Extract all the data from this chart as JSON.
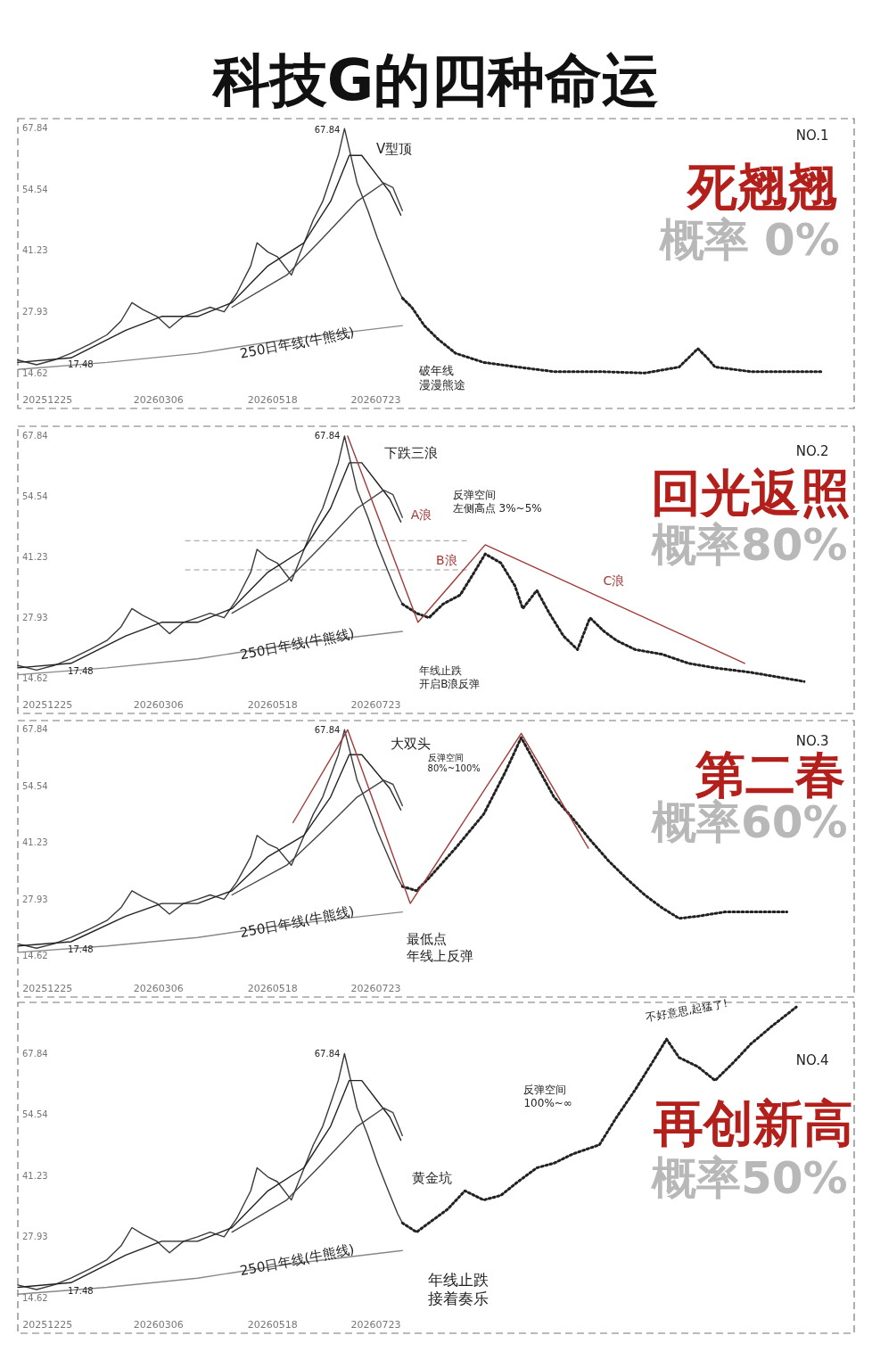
{
  "chart_data": [
    {
      "type": "line",
      "title": "科技G的四种命运",
      "xlim": [
        "2025-12-06",
        "2027-05-25"
      ],
      "ylim": [
        7,
        70
      ],
      "xticks": [
        {
          "value": "2025-12-25",
          "label": "20251225"
        },
        {
          "value": "2026-03-06",
          "label": "20260306"
        },
        {
          "value": "2026-05-18",
          "label": "20260518"
        },
        {
          "value": "2026-07-23",
          "label": "20260723"
        }
      ],
      "yticks": [
        14.62,
        27.93,
        41.23,
        54.54,
        67.84
      ],
      "grid": false,
      "series": [
        {
          "color": "#3a3a3a",
          "x": [
            "2025-12-06",
            "2025-12-18",
            "2025-12-29",
            "2026-01-09",
            "2026-01-21",
            "2026-02-01",
            "2026-02-10",
            "2026-02-17",
            "2026-02-24",
            "2026-03-05",
            "2026-03-13",
            "2026-03-22",
            "2026-03-31",
            "2026-04-08",
            "2026-04-17",
            "2026-04-25",
            "2026-05-04",
            "2026-05-08",
            "2026-05-15",
            "2026-05-21",
            "2026-05-30",
            "2026-06-06",
            "2026-06-13",
            "2026-06-19",
            "2026-06-24",
            "2026-06-29",
            "2026-07-03",
            "2026-07-07",
            "2026-07-11",
            "2026-07-18",
            "2026-07-24",
            "2026-07-31",
            "2026-08-06",
            "2026-08-09"
          ],
          "values": [
            17.5,
            16.5,
            17.5,
            19,
            21,
            23,
            26,
            30,
            28.5,
            27,
            24.5,
            27,
            28,
            29,
            28,
            32,
            38,
            43,
            41,
            40,
            36,
            42,
            48,
            52,
            57,
            62,
            67.84,
            62,
            56,
            50,
            44,
            38,
            33,
            31
          ]
        },
        {
          "color": "#222222",
          "x": [
            "2025-12-06",
            "2026-01-09",
            "2026-02-13",
            "2026-03-08",
            "2026-03-31",
            "2026-04-22",
            "2026-05-15",
            "2026-06-07",
            "2026-06-24",
            "2026-07-06",
            "2026-07-14",
            "2026-07-23",
            "2026-08-01",
            "2026-08-08"
          ],
          "values": [
            17,
            18,
            24,
            27,
            27,
            30,
            38,
            43,
            52,
            62,
            62,
            58,
            54,
            49
          ]
        },
        {
          "color": "#444444",
          "x": [
            "2026-04-22",
            "2026-05-27",
            "2026-06-19",
            "2026-07-11",
            "2026-07-28",
            "2026-08-03",
            "2026-08-09"
          ],
          "values": [
            29,
            36,
            44,
            52,
            56,
            55,
            50
          ]
        },
        {
          "color": "#888888",
          "x": [
            "2025-12-06",
            "2026-02-01",
            "2026-03-31",
            "2026-05-27",
            "2026-08-09"
          ],
          "values": [
            15.5,
            17,
            19,
            22,
            25
          ]
        },
        {
          "color": "#222222",
          "line_style": "dotted",
          "x": [
            "2026-08-09",
            "2026-08-15",
            "2026-08-23",
            "2026-09-01",
            "2026-09-12",
            "2026-09-30",
            "2026-10-22",
            "2026-11-14",
            "2026-12-13",
            "2027-01-11",
            "2027-02-02",
            "2027-02-08",
            "2027-02-14",
            "2027-02-20",
            "2027-02-25",
            "2027-03-20",
            "2027-04-18",
            "2027-05-05"
          ],
          "values": [
            31,
            29,
            25,
            22,
            19,
            17,
            16,
            15,
            15,
            14.7,
            16,
            18,
            20,
            18,
            16,
            15,
            15,
            15
          ]
        }
      ],
      "annotations": [
        "NO.1",
        "死翘翘",
        "概率 0%",
        "67.84",
        "V型顶",
        "17.48",
        "250日年线(牛熊线)",
        "破年线漫漫熊途"
      ]
    },
    {
      "type": "line",
      "xlim": [
        "2025-12-06",
        "2027-05-25"
      ],
      "ylim": [
        7,
        70
      ],
      "xticks": [
        {
          "value": "2025-12-25",
          "label": "20251225"
        },
        {
          "value": "2026-03-06",
          "label": "20260306"
        },
        {
          "value": "2026-05-18",
          "label": "20260518"
        },
        {
          "value": "2026-07-23",
          "label": "20260723"
        }
      ],
      "yticks": [
        14.62,
        27.93,
        41.23,
        54.54,
        67.84
      ],
      "grid": false,
      "ref_lines": [
        {
          "axis": "y",
          "value": 44.9,
          "color": "#999999",
          "line_style": "dashed"
        },
        {
          "axis": "y",
          "value": 38.5,
          "color": "#999999",
          "line_style": "dashed"
        }
      ],
      "series": [
        {
          "color": "#3a3a3a",
          "x": [
            "2025-12-06",
            "2025-12-18",
            "2025-12-29",
            "2026-01-09",
            "2026-01-21",
            "2026-02-01",
            "2026-02-10",
            "2026-02-17",
            "2026-02-24",
            "2026-03-05",
            "2026-03-13",
            "2026-03-22",
            "2026-03-31",
            "2026-04-08",
            "2026-04-17",
            "2026-04-25",
            "2026-05-04",
            "2026-05-08",
            "2026-05-15",
            "2026-05-21",
            "2026-05-30",
            "2026-06-06",
            "2026-06-13",
            "2026-06-19",
            "2026-06-24",
            "2026-06-29",
            "2026-07-03",
            "2026-07-07",
            "2026-07-11",
            "2026-07-18",
            "2026-07-24",
            "2026-07-31",
            "2026-08-06",
            "2026-08-09"
          ],
          "values": [
            17.5,
            16.5,
            17.5,
            19,
            21,
            23,
            26,
            30,
            28.5,
            27,
            24.5,
            27,
            28,
            29,
            28,
            32,
            38,
            43,
            41,
            40,
            36,
            42,
            48,
            52,
            57,
            62,
            67.84,
            62,
            56,
            50,
            44,
            38,
            33,
            31
          ]
        },
        {
          "color": "#222222",
          "x": [
            "2025-12-06",
            "2026-01-09",
            "2026-02-13",
            "2026-03-08",
            "2026-03-31",
            "2026-04-22",
            "2026-05-15",
            "2026-06-07",
            "2026-06-24",
            "2026-07-06",
            "2026-07-14",
            "2026-07-23",
            "2026-08-01",
            "2026-08-08"
          ],
          "values": [
            17,
            18,
            24,
            27,
            27,
            30,
            38,
            43,
            52,
            62,
            62,
            58,
            54,
            49
          ]
        },
        {
          "color": "#444444",
          "x": [
            "2026-04-22",
            "2026-05-27",
            "2026-06-19",
            "2026-07-11",
            "2026-07-28",
            "2026-08-03",
            "2026-08-09"
          ],
          "values": [
            29,
            36,
            44,
            52,
            56,
            55,
            50
          ]
        },
        {
          "color": "#888888",
          "x": [
            "2025-12-06",
            "2026-02-01",
            "2026-03-31",
            "2026-05-27",
            "2026-08-09"
          ],
          "values": [
            15.5,
            17,
            19,
            22,
            25
          ]
        },
        {
          "color": "#222222",
          "line_style": "dotted",
          "x": [
            "2026-08-09",
            "2026-08-18",
            "2026-08-26",
            "2026-09-04",
            "2026-09-15",
            "2026-09-24",
            "2026-10-01",
            "2026-10-11",
            "2026-10-20",
            "2026-10-25",
            "2026-11-03",
            "2026-11-11",
            "2026-11-20",
            "2026-11-29",
            "2026-12-07",
            "2026-12-16",
            "2026-12-24",
            "2027-01-05",
            "2027-01-22",
            "2027-02-08",
            "2027-02-25",
            "2027-03-20",
            "2027-04-23"
          ],
          "values": [
            31,
            29,
            28,
            31,
            33,
            38,
            42,
            40,
            35,
            30,
            34,
            29,
            24,
            21,
            28,
            25,
            23,
            21,
            20,
            18,
            17,
            16,
            14
          ]
        },
        {
          "color": "#a33a3a",
          "x": [
            "2026-07-05",
            "2026-08-19",
            "2026-10-01",
            "2027-03-16"
          ],
          "values": [
            67.84,
            27,
            44,
            18
          ]
        }
      ],
      "annotations": [
        "NO.2",
        "回光返照",
        "概率80%",
        "67.84",
        "下跌三浪",
        "反弹空间左侧高点 3%~5%",
        "A浪",
        "B浪",
        "C浪",
        "17.48",
        "250日年线(牛熊线)",
        "年线止跌开启B浪反弹"
      ]
    },
    {
      "type": "line",
      "xlim": [
        "2025-12-06",
        "2027-05-25"
      ],
      "ylim": [
        5,
        70
      ],
      "xticks": [
        {
          "value": "2025-12-25",
          "label": "20251225"
        },
        {
          "value": "2026-03-06",
          "label": "20260306"
        },
        {
          "value": "2026-05-18",
          "label": "20260518"
        },
        {
          "value": "2026-07-23",
          "label": "20260723"
        }
      ],
      "yticks": [
        14.62,
        27.93,
        41.23,
        54.54,
        67.84
      ],
      "grid": false,
      "series": [
        {
          "color": "#3a3a3a",
          "x": [
            "2025-12-06",
            "2025-12-18",
            "2025-12-29",
            "2026-01-09",
            "2026-01-21",
            "2026-02-01",
            "2026-02-10",
            "2026-02-17",
            "2026-02-24",
            "2026-03-05",
            "2026-03-13",
            "2026-03-22",
            "2026-03-31",
            "2026-04-08",
            "2026-04-17",
            "2026-04-25",
            "2026-05-04",
            "2026-05-08",
            "2026-05-15",
            "2026-05-21",
            "2026-05-30",
            "2026-06-06",
            "2026-06-13",
            "2026-06-19",
            "2026-06-24",
            "2026-06-29",
            "2026-07-03",
            "2026-07-07",
            "2026-07-11",
            "2026-07-18",
            "2026-07-24",
            "2026-07-31",
            "2026-08-06",
            "2026-08-09"
          ],
          "values": [
            17.5,
            16.5,
            17.5,
            19,
            21,
            23,
            26,
            30,
            28.5,
            27,
            24.5,
            27,
            28,
            29,
            28,
            32,
            38,
            43,
            41,
            40,
            36,
            42,
            48,
            52,
            57,
            62,
            67.84,
            62,
            56,
            50,
            44,
            38,
            33,
            31
          ]
        },
        {
          "color": "#222222",
          "x": [
            "2025-12-06",
            "2026-01-09",
            "2026-02-13",
            "2026-03-08",
            "2026-03-31",
            "2026-04-22",
            "2026-05-15",
            "2026-06-07",
            "2026-06-24",
            "2026-07-06",
            "2026-07-14",
            "2026-07-23",
            "2026-08-01",
            "2026-08-08"
          ],
          "values": [
            17,
            18,
            24,
            27,
            27,
            30,
            38,
            43,
            52,
            62,
            62,
            58,
            54,
            49
          ]
        },
        {
          "color": "#444444",
          "x": [
            "2026-04-22",
            "2026-05-27",
            "2026-06-19",
            "2026-07-11",
            "2026-07-28",
            "2026-08-03",
            "2026-08-09"
          ],
          "values": [
            29,
            36,
            44,
            52,
            56,
            55,
            50
          ]
        },
        {
          "color": "#888888",
          "x": [
            "2025-12-06",
            "2026-02-01",
            "2026-03-31",
            "2026-05-27",
            "2026-08-09"
          ],
          "values": [
            15.5,
            17,
            19,
            22,
            25
          ]
        },
        {
          "color": "#222222",
          "line_style": "dotted",
          "x": [
            "2026-08-09",
            "2026-08-18",
            "2026-08-26",
            "2026-09-12",
            "2026-09-30",
            "2026-10-14",
            "2026-10-24",
            "2026-11-02",
            "2026-11-14",
            "2026-11-26",
            "2026-12-07",
            "2026-12-19",
            "2026-12-30",
            "2027-01-11",
            "2027-01-22",
            "2027-02-02",
            "2027-02-14",
            "2027-03-03",
            "2027-03-20",
            "2027-04-12"
          ],
          "values": [
            31,
            30,
            33,
            40,
            48,
            58,
            66,
            60,
            52,
            47,
            42,
            37,
            33,
            29,
            26,
            23.5,
            24,
            25,
            25,
            25
          ]
        },
        {
          "color": "#a33a3a",
          "x": [
            "2026-05-31",
            "2026-07-05",
            "2026-08-14",
            "2026-10-24",
            "2026-12-06"
          ],
          "values": [
            46,
            67.84,
            27,
            67,
            40
          ]
        }
      ],
      "annotations": [
        "NO.3",
        "第二春",
        "概率60%",
        "67.84",
        "大双头",
        "反弹空间80%~100%",
        "17.48",
        "250日年线(牛熊线)",
        "最低点年线上反弹"
      ]
    },
    {
      "type": "line",
      "xlim": [
        "2025-12-06",
        "2027-05-25"
      ],
      "ylim": [
        7,
        79
      ],
      "xticks": [
        {
          "value": "2025-12-25",
          "label": "20251225"
        },
        {
          "value": "2026-03-06",
          "label": "20260306"
        },
        {
          "value": "2026-05-18",
          "label": "20260518"
        },
        {
          "value": "2026-07-23",
          "label": "20260723"
        }
      ],
      "yticks": [
        14.62,
        27.93,
        41.23,
        54.54,
        67.84
      ],
      "grid": false,
      "series": [
        {
          "color": "#3a3a3a",
          "x": [
            "2025-12-06",
            "2025-12-18",
            "2025-12-29",
            "2026-01-09",
            "2026-01-21",
            "2026-02-01",
            "2026-02-10",
            "2026-02-17",
            "2026-02-24",
            "2026-03-05",
            "2026-03-13",
            "2026-03-22",
            "2026-03-31",
            "2026-04-08",
            "2026-04-17",
            "2026-04-25",
            "2026-05-04",
            "2026-05-08",
            "2026-05-15",
            "2026-05-21",
            "2026-05-30",
            "2026-06-06",
            "2026-06-13",
            "2026-06-19",
            "2026-06-24",
            "2026-06-29",
            "2026-07-03",
            "2026-07-07",
            "2026-07-11",
            "2026-07-18",
            "2026-07-24",
            "2026-07-31",
            "2026-08-06",
            "2026-08-09"
          ],
          "values": [
            17.5,
            16.5,
            17.5,
            19,
            21,
            23,
            26,
            30,
            28.5,
            27,
            24.5,
            27,
            28,
            29,
            28,
            32,
            38,
            43,
            41,
            40,
            36,
            42,
            48,
            52,
            57,
            62,
            67.84,
            62,
            56,
            50,
            44,
            38,
            33,
            31
          ]
        },
        {
          "color": "#222222",
          "x": [
            "2025-12-06",
            "2026-01-09",
            "2026-02-13",
            "2026-03-08",
            "2026-03-31",
            "2026-04-22",
            "2026-05-15",
            "2026-06-07",
            "2026-06-24",
            "2026-07-06",
            "2026-07-14",
            "2026-07-23",
            "2026-08-01",
            "2026-08-08"
          ],
          "values": [
            17,
            18,
            24,
            27,
            27,
            30,
            38,
            43,
            52,
            62,
            62,
            58,
            54,
            49
          ]
        },
        {
          "color": "#444444",
          "x": [
            "2026-04-22",
            "2026-05-27",
            "2026-06-19",
            "2026-07-11",
            "2026-07-28",
            "2026-08-03",
            "2026-08-09"
          ],
          "values": [
            29,
            36,
            44,
            52,
            56,
            55,
            50
          ]
        },
        {
          "color": "#888888",
          "x": [
            "2025-12-06",
            "2026-02-01",
            "2026-03-31",
            "2026-05-27",
            "2026-08-09"
          ],
          "values": [
            15.5,
            17,
            19,
            22,
            25
          ]
        },
        {
          "color": "#222222",
          "line_style": "dotted",
          "x": [
            "2026-08-09",
            "2026-08-18",
            "2026-08-26",
            "2026-09-07",
            "2026-09-18",
            "2026-09-30",
            "2026-10-11",
            "2026-10-22",
            "2026-11-03",
            "2026-11-14",
            "2026-11-26",
            "2026-12-13",
            "2026-12-24",
            "2027-01-05",
            "2027-01-16",
            "2027-01-25",
            "2027-02-02",
            "2027-02-14",
            "2027-02-25",
            "2027-03-09",
            "2027-03-20",
            "2027-04-03",
            "2027-04-18"
          ],
          "values": [
            31,
            29,
            31,
            34,
            38,
            36,
            37,
            40,
            43,
            44,
            46,
            48,
            54,
            60,
            66,
            71,
            67,
            65,
            62,
            66,
            70,
            74,
            78
          ]
        }
      ],
      "annotations": [
        "NO.4",
        "再创新高",
        "概率50%",
        "67.84",
        "黄金坑",
        "反弹空间100%~∞",
        "17.48",
        "250日年线(牛熊线)",
        "年线止跌接着奏乐",
        "不好意思,起猛了!"
      ]
    }
  ]
}
